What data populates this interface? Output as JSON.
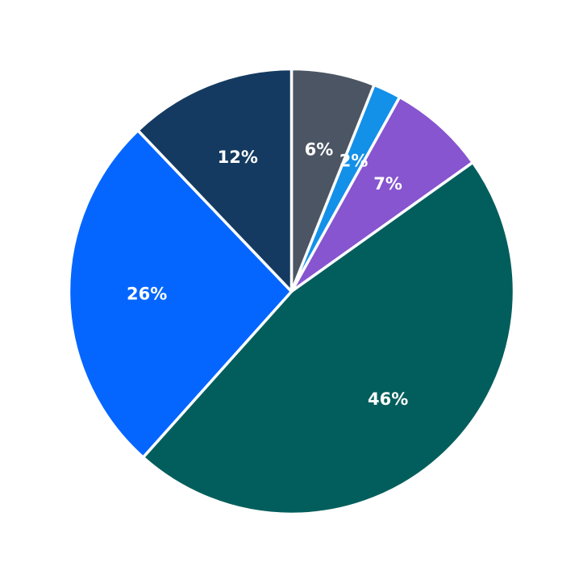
{
  "chart_data": {
    "type": "pie",
    "title": "",
    "start_angle": 90,
    "direction": "clockwise",
    "slices": [
      {
        "label": "6%",
        "value": 6,
        "color": "#4b5563"
      },
      {
        "label": "2%",
        "value": 2,
        "color": "#1390e8"
      },
      {
        "label": "7%",
        "value": 7,
        "color": "#8655cf"
      },
      {
        "label": "46%",
        "value": 46,
        "color": "#025e5c"
      },
      {
        "label": "26%",
        "value": 26,
        "color": "#0566ff"
      },
      {
        "label": "12%",
        "value": 12,
        "color": "#143a61"
      }
    ]
  }
}
